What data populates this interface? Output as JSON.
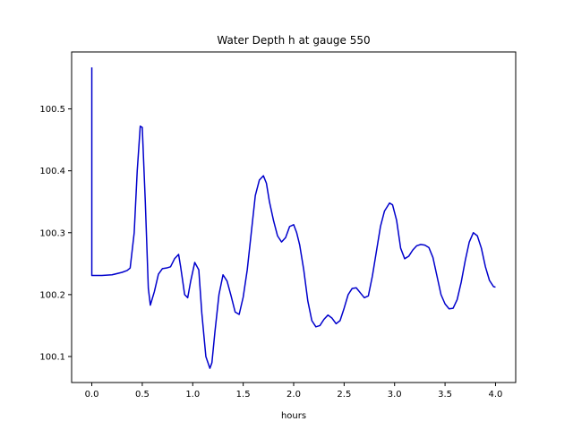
{
  "chart_data": {
    "type": "line",
    "title": "Water Depth h at gauge 550",
    "xlabel": "hours",
    "ylabel": "",
    "xlim": [
      -0.2,
      4.2
    ],
    "ylim": [
      100.058,
      100.592
    ],
    "xticks": [
      0.0,
      0.5,
      1.0,
      1.5,
      2.0,
      2.5,
      3.0,
      3.5,
      4.0
    ],
    "xtick_labels": [
      "0.0",
      "0.5",
      "1.0",
      "1.5",
      "2.0",
      "2.5",
      "3.0",
      "3.5",
      "4.0"
    ],
    "yticks": [
      100.1,
      100.2,
      100.3,
      100.4,
      100.5
    ],
    "ytick_labels": [
      "100.1",
      "100.2",
      "100.3",
      "100.4",
      "100.5"
    ],
    "grid": false,
    "legend": "none",
    "series": [
      {
        "color": "#0000cc",
        "x": [
          0.0,
          0.0,
          0.0,
          0.1,
          0.2,
          0.3,
          0.35,
          0.38,
          0.42,
          0.45,
          0.48,
          0.5,
          0.53,
          0.56,
          0.58,
          0.62,
          0.66,
          0.7,
          0.74,
          0.78,
          0.82,
          0.86,
          0.88,
          0.92,
          0.95,
          0.98,
          1.02,
          1.06,
          1.09,
          1.13,
          1.17,
          1.19,
          1.22,
          1.26,
          1.3,
          1.34,
          1.38,
          1.42,
          1.46,
          1.5,
          1.54,
          1.58,
          1.62,
          1.66,
          1.7,
          1.73,
          1.76,
          1.8,
          1.84,
          1.88,
          1.92,
          1.96,
          2.0,
          2.03,
          2.06,
          2.1,
          2.14,
          2.18,
          2.22,
          2.26,
          2.3,
          2.34,
          2.38,
          2.42,
          2.46,
          2.5,
          2.54,
          2.58,
          2.62,
          2.66,
          2.7,
          2.74,
          2.78,
          2.82,
          2.86,
          2.9,
          2.95,
          2.98,
          3.02,
          3.06,
          3.1,
          3.14,
          3.18,
          3.22,
          3.26,
          3.3,
          3.34,
          3.38,
          3.42,
          3.46,
          3.5,
          3.54,
          3.58,
          3.62,
          3.66,
          3.7,
          3.74,
          3.78,
          3.82,
          3.86,
          3.9,
          3.94,
          3.98,
          4.0
        ],
        "y": [
          100.567,
          100.232,
          100.231,
          100.231,
          100.232,
          100.236,
          100.239,
          100.243,
          100.3,
          100.4,
          100.472,
          100.47,
          100.35,
          100.21,
          100.183,
          100.205,
          100.233,
          100.242,
          100.243,
          100.245,
          100.258,
          100.265,
          100.245,
          100.2,
          100.195,
          100.222,
          100.252,
          100.24,
          100.17,
          100.1,
          100.081,
          100.09,
          100.14,
          100.2,
          100.232,
          100.222,
          100.198,
          100.172,
          100.168,
          100.196,
          100.24,
          100.3,
          100.36,
          100.385,
          100.392,
          100.38,
          100.35,
          100.32,
          100.295,
          100.285,
          100.292,
          100.31,
          100.313,
          100.3,
          100.28,
          100.24,
          100.19,
          100.158,
          100.148,
          100.15,
          100.16,
          100.167,
          100.162,
          100.153,
          100.158,
          100.178,
          100.2,
          100.21,
          100.211,
          100.203,
          100.195,
          100.198,
          100.23,
          100.27,
          100.31,
          100.335,
          100.348,
          100.345,
          100.32,
          100.275,
          100.258,
          100.262,
          100.272,
          100.279,
          100.281,
          100.28,
          100.276,
          100.26,
          100.23,
          100.2,
          100.185,
          100.177,
          100.178,
          100.192,
          100.22,
          100.255,
          100.285,
          100.3,
          100.295,
          100.275,
          100.245,
          100.223,
          100.213,
          100.212
        ]
      }
    ]
  }
}
